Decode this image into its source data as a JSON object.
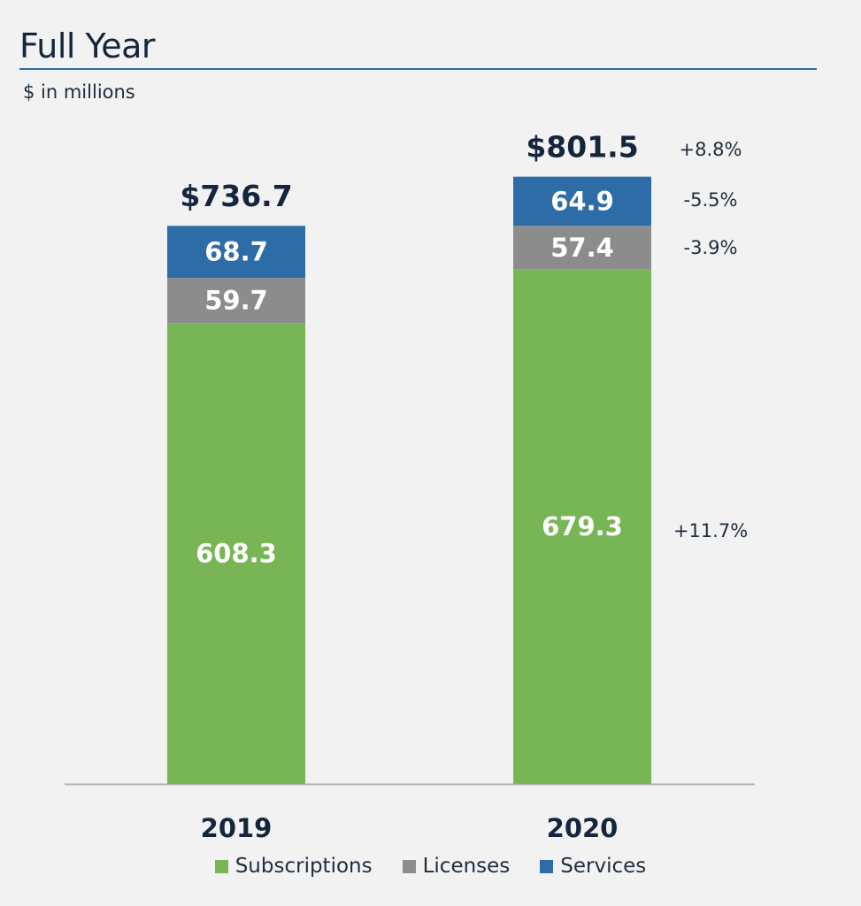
{
  "title": "Full Year",
  "subtitle": "$ in millions",
  "colors": {
    "subscriptions": "#78b655",
    "licenses": "#8c8c8c",
    "services": "#2e6ca8",
    "rule": "#2e6da4",
    "axis": "#b3b3b3",
    "text_dark": "#14263d"
  },
  "chart_data": {
    "type": "bar",
    "stacked": true,
    "categories": [
      "2019",
      "2020"
    ],
    "series": [
      {
        "name": "Subscriptions",
        "values": [
          608.3,
          679.3
        ]
      },
      {
        "name": "Licenses",
        "values": [
          59.7,
          57.4
        ]
      },
      {
        "name": "Services",
        "values": [
          68.7,
          64.9
        ]
      }
    ],
    "totals": [
      "$736.7",
      "$801.5"
    ],
    "data_labels": {
      "Subscriptions": [
        "608.3",
        "679.3"
      ],
      "Licenses": [
        "59.7",
        "57.4"
      ],
      "Services": [
        "68.7",
        "64.9"
      ]
    },
    "growth": {
      "total": "+8.8%",
      "Services": "-5.5%",
      "Licenses": "-3.9%",
      "Subscriptions": "+11.7%"
    },
    "ylim": [
      0,
      820
    ],
    "legend_position": "bottom",
    "grid": false
  },
  "legend": [
    {
      "label": "Subscriptions",
      "color": "#78b655"
    },
    {
      "label": "Licenses",
      "color": "#8c8c8c"
    },
    {
      "label": "Services",
      "color": "#2e6ca8"
    }
  ]
}
